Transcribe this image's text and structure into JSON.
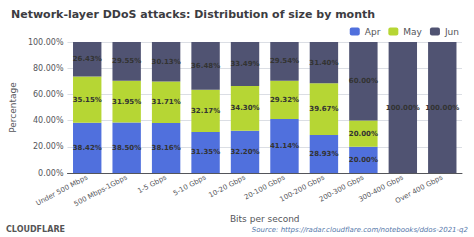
{
  "chart_data": {
    "type": "bar",
    "title": "Network-layer DDoS attacks: Distribution of size by month",
    "x_label": "Bits per second",
    "y_label": "Percentage",
    "categories": [
      "Under 500 Mbps",
      "500 Mbps-1Gbps",
      "1-5 Gbps",
      "5-10 Gbps",
      "10-20 Gbps",
      "20-100 Gbps",
      "100-200 Gbps",
      "200-300 Gbps",
      "300-400 Gbps",
      "Over 400 Gbps"
    ],
    "series": [
      {
        "name": "Apr",
        "values": [
          38.42,
          38.5,
          38.16,
          31.35,
          32.2,
          41.14,
          28.93,
          20.0,
          0.0,
          0.0
        ],
        "value_labels": [
          "38.42%",
          "38.50%",
          "38.16%",
          "31.35%",
          "32.20%",
          "41.14%",
          "28.93%",
          "20.00%",
          null,
          null
        ]
      },
      {
        "name": "May",
        "values": [
          35.15,
          31.95,
          31.71,
          32.17,
          34.3,
          29.32,
          39.67,
          20.0,
          0.0,
          0.0
        ],
        "value_labels": [
          "35.15%",
          "31.95%",
          "31.71%",
          "32.17%",
          "34.30%",
          "29.32%",
          "39.67%",
          "20.00%",
          null,
          null
        ]
      },
      {
        "name": "Jun",
        "values": [
          26.43,
          29.55,
          30.13,
          36.48,
          33.49,
          29.54,
          31.4,
          60.0,
          100.0,
          100.0
        ],
        "value_labels": [
          "26.43%",
          "29.55%",
          "30.13%",
          "36.48%",
          "33.49%",
          "29.54%",
          "31.40%",
          "60.00%",
          "100.00%",
          "100.00%"
        ]
      }
    ],
    "stacked": true,
    "data_labels": true,
    "ylim": [
      0,
      100
    ],
    "yticks": [
      {
        "value": 0,
        "label": "0.00%"
      },
      {
        "value": 20,
        "label": "20.00%"
      },
      {
        "value": 40,
        "label": "40.00%"
      },
      {
        "value": 60,
        "label": "60.00%"
      },
      {
        "value": 80,
        "label": "80.00%"
      },
      {
        "value": 100,
        "label": "100.00%"
      }
    ],
    "grid": true,
    "legend": "upper right",
    "annotations": [
      "CLOUDFLARE",
      "Source: https://radar.cloudflare.com/notebooks/ddos-2021-q2"
    ]
  }
}
